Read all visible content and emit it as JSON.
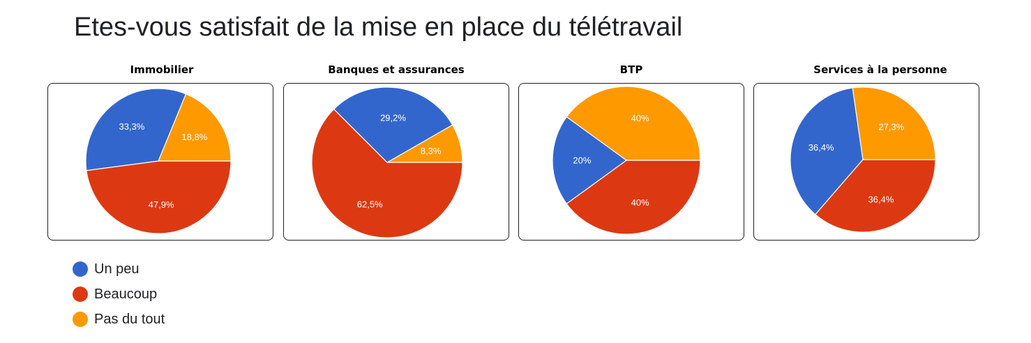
{
  "title": "Etes-vous satisfait de la mise en place du télétravail",
  "legend": [
    {
      "name": "Un peu",
      "color": "#3366cc"
    },
    {
      "name": "Beaucoup",
      "color": "#dc3912"
    },
    {
      "name": "Pas du tout",
      "color": "#ff9900"
    }
  ],
  "chart_data": [
    {
      "type": "pie",
      "title": "Immobilier",
      "series": [
        {
          "name": "Pas du tout",
          "value": 18.8,
          "label": "18,8%",
          "color": "#ff9900"
        },
        {
          "name": "Un peu",
          "value": 33.3,
          "label": "33,3%",
          "color": "#3366cc"
        },
        {
          "name": "Beaucoup",
          "value": 47.9,
          "label": "47,9%",
          "color": "#dc3912"
        }
      ]
    },
    {
      "type": "pie",
      "title": "Banques et assurances",
      "series": [
        {
          "name": "Pas du tout",
          "value": 8.3,
          "label": "8,3%",
          "color": "#ff9900"
        },
        {
          "name": "Un peu",
          "value": 29.2,
          "label": "29,2%",
          "color": "#3366cc"
        },
        {
          "name": "Beaucoup",
          "value": 62.5,
          "label": "62,5%",
          "color": "#dc3912"
        }
      ]
    },
    {
      "type": "pie",
      "title": "BTP",
      "series": [
        {
          "name": "Pas du tout",
          "value": 40,
          "label": "40%",
          "color": "#ff9900"
        },
        {
          "name": "Un peu",
          "value": 20,
          "label": "20%",
          "color": "#3366cc"
        },
        {
          "name": "Beaucoup",
          "value": 40,
          "label": "40%",
          "color": "#dc3912"
        }
      ]
    },
    {
      "type": "pie",
      "title": "Services à la personne",
      "series": [
        {
          "name": "Pas du tout",
          "value": 27.3,
          "label": "27,3%",
          "color": "#ff9900"
        },
        {
          "name": "Un peu",
          "value": 36.4,
          "label": "36,4%",
          "color": "#3366cc"
        },
        {
          "name": "Beaucoup",
          "value": 36.4,
          "label": "36,4%",
          "color": "#dc3912"
        }
      ]
    }
  ]
}
